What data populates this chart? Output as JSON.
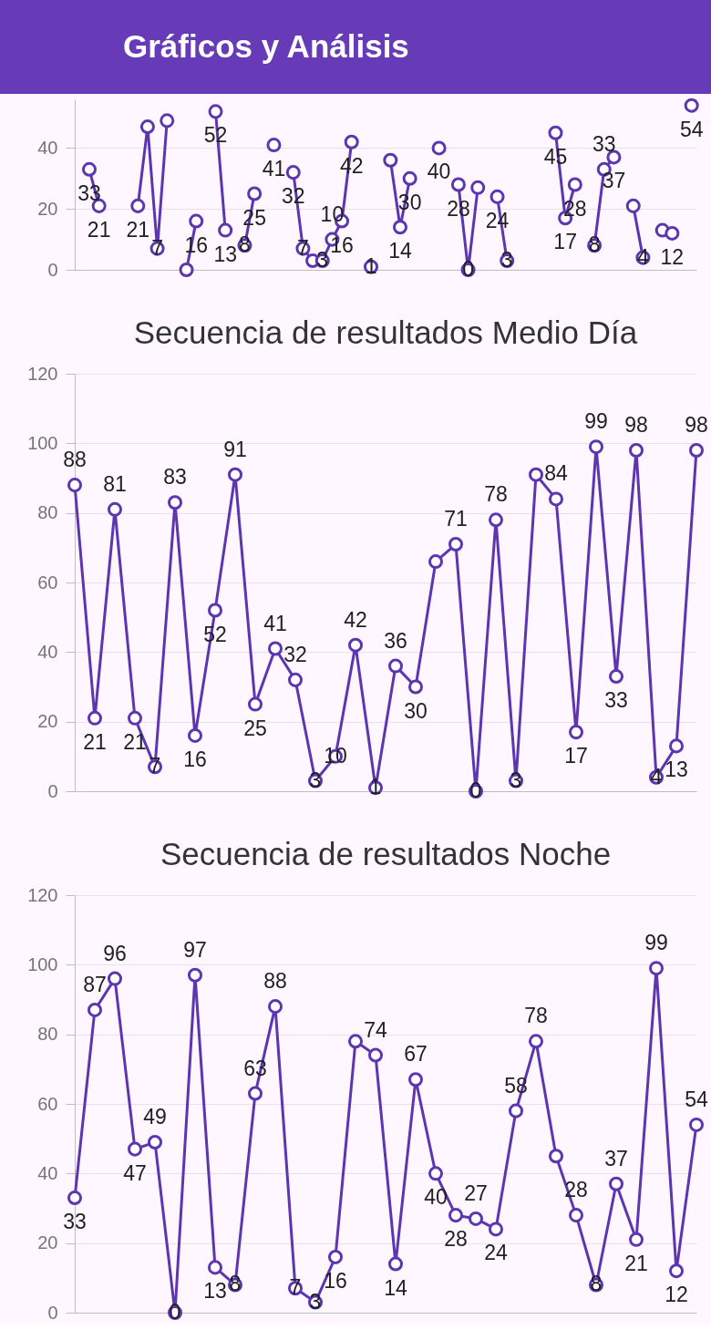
{
  "chart_data": [
    {
      "type": "other",
      "title": "Gráficos y Análisis"
    },
    {
      "type": "line",
      "categories": [
        null,
        null,
        null,
        null,
        null,
        null,
        null,
        null,
        null,
        null,
        null,
        null,
        null,
        null,
        null,
        null,
        null,
        null,
        null,
        null,
        null,
        null,
        null,
        null,
        null,
        null,
        null,
        null,
        null,
        null,
        null,
        null,
        null,
        null,
        null,
        null,
        null,
        null,
        null,
        null,
        null,
        null,
        null,
        null,
        null,
        null,
        null,
        null,
        null,
        null,
        null,
        null,
        null,
        null,
        null,
        null,
        null,
        null,
        null,
        null,
        null,
        null,
        null,
        null
      ],
      "values": [
        null,
        33,
        21,
        null,
        null,
        null,
        21,
        47,
        7,
        49,
        null,
        0,
        16,
        null,
        52,
        13,
        null,
        8,
        25,
        null,
        41,
        null,
        32,
        7,
        3,
        3,
        10,
        16,
        42,
        null,
        1,
        null,
        36,
        14,
        30,
        null,
        null,
        40,
        null,
        28,
        0,
        27,
        null,
        24,
        3,
        null,
        null,
        null,
        null,
        45,
        17,
        28,
        null,
        8,
        33,
        37,
        null,
        21,
        4,
        null,
        13,
        12,
        null,
        54
      ],
      "value_labels": [
        null,
        "33",
        "21",
        null,
        null,
        null,
        "21",
        null,
        "7",
        null,
        null,
        null,
        "16",
        null,
        "52",
        "13",
        null,
        "8",
        "25",
        null,
        "41",
        null,
        "32",
        "7",
        null,
        "3",
        "10",
        "16",
        "42",
        null,
        "1",
        null,
        null,
        "14",
        "30",
        null,
        null,
        "40",
        null,
        "28",
        "0",
        null,
        null,
        "24",
        "3",
        null,
        null,
        null,
        null,
        "45",
        "17",
        "28",
        null,
        "8",
        "33",
        "37",
        null,
        null,
        "4",
        null,
        null,
        "12",
        null,
        "54"
      ],
      "color": "#5e35b1",
      "ylim": [
        0,
        56
      ],
      "yticks": [
        0,
        20,
        40
      ],
      "grid": "y",
      "marker": "circle"
    },
    {
      "type": "line",
      "title": "Secuencia de resultados Medio Día",
      "categories": [
        null,
        null,
        null,
        null,
        null,
        null,
        null,
        null,
        null,
        null,
        null,
        null,
        null,
        null,
        null,
        null,
        null,
        null,
        null,
        null,
        null,
        null,
        null,
        null,
        null,
        null,
        null,
        null,
        null,
        null,
        null,
        null
      ],
      "values": [
        88,
        21,
        81,
        21,
        7,
        83,
        16,
        52,
        91,
        25,
        41,
        32,
        3,
        10,
        42,
        1,
        36,
        30,
        66,
        71,
        0,
        78,
        3,
        91,
        84,
        17,
        99,
        33,
        98,
        4,
        13,
        98
      ],
      "value_labels": [
        "88",
        "21",
        "81",
        "21",
        "7",
        "83",
        "16",
        "52",
        "91",
        "25",
        "41",
        "32",
        "3",
        "10",
        "42",
        "1",
        "36",
        "30",
        null,
        "71",
        "0",
        "78",
        "3",
        null,
        "84",
        "17",
        "99",
        "33",
        "98",
        "4",
        "13",
        "98"
      ],
      "color": "#5e35b1",
      "ylim": [
        0,
        120
      ],
      "yticks": [
        0,
        20,
        40,
        60,
        80,
        100,
        120
      ],
      "grid": "y",
      "marker": "circle"
    },
    {
      "type": "line",
      "title": "Secuencia de resultados Noche",
      "categories": [
        null,
        null,
        null,
        null,
        null,
        null,
        null,
        null,
        null,
        null,
        null,
        null,
        null,
        null,
        null,
        null,
        null,
        null,
        null,
        null,
        null,
        null,
        null,
        null,
        null,
        null,
        null,
        null,
        null,
        null,
        null,
        null
      ],
      "values": [
        33,
        87,
        96,
        47,
        49,
        0,
        97,
        13,
        8,
        63,
        88,
        7,
        3,
        16,
        78,
        74,
        14,
        67,
        40,
        28,
        27,
        24,
        58,
        78,
        45,
        28,
        8,
        37,
        21,
        99,
        12,
        54
      ],
      "value_labels": [
        "33",
        "87",
        "96",
        "47",
        "49",
        "0",
        "97",
        "13",
        "8",
        "63",
        "88",
        "7",
        "3",
        "16",
        null,
        "74",
        "14",
        "67",
        "40",
        "28",
        "27",
        "24",
        "58",
        "78",
        null,
        "28",
        "8",
        "37",
        "21",
        "99",
        "12",
        "54"
      ],
      "color": "#5e35b1",
      "ylim": [
        0,
        120
      ],
      "yticks": [
        0,
        20,
        40,
        60,
        80,
        100,
        120
      ],
      "grid": "y",
      "marker": "circle"
    }
  ]
}
